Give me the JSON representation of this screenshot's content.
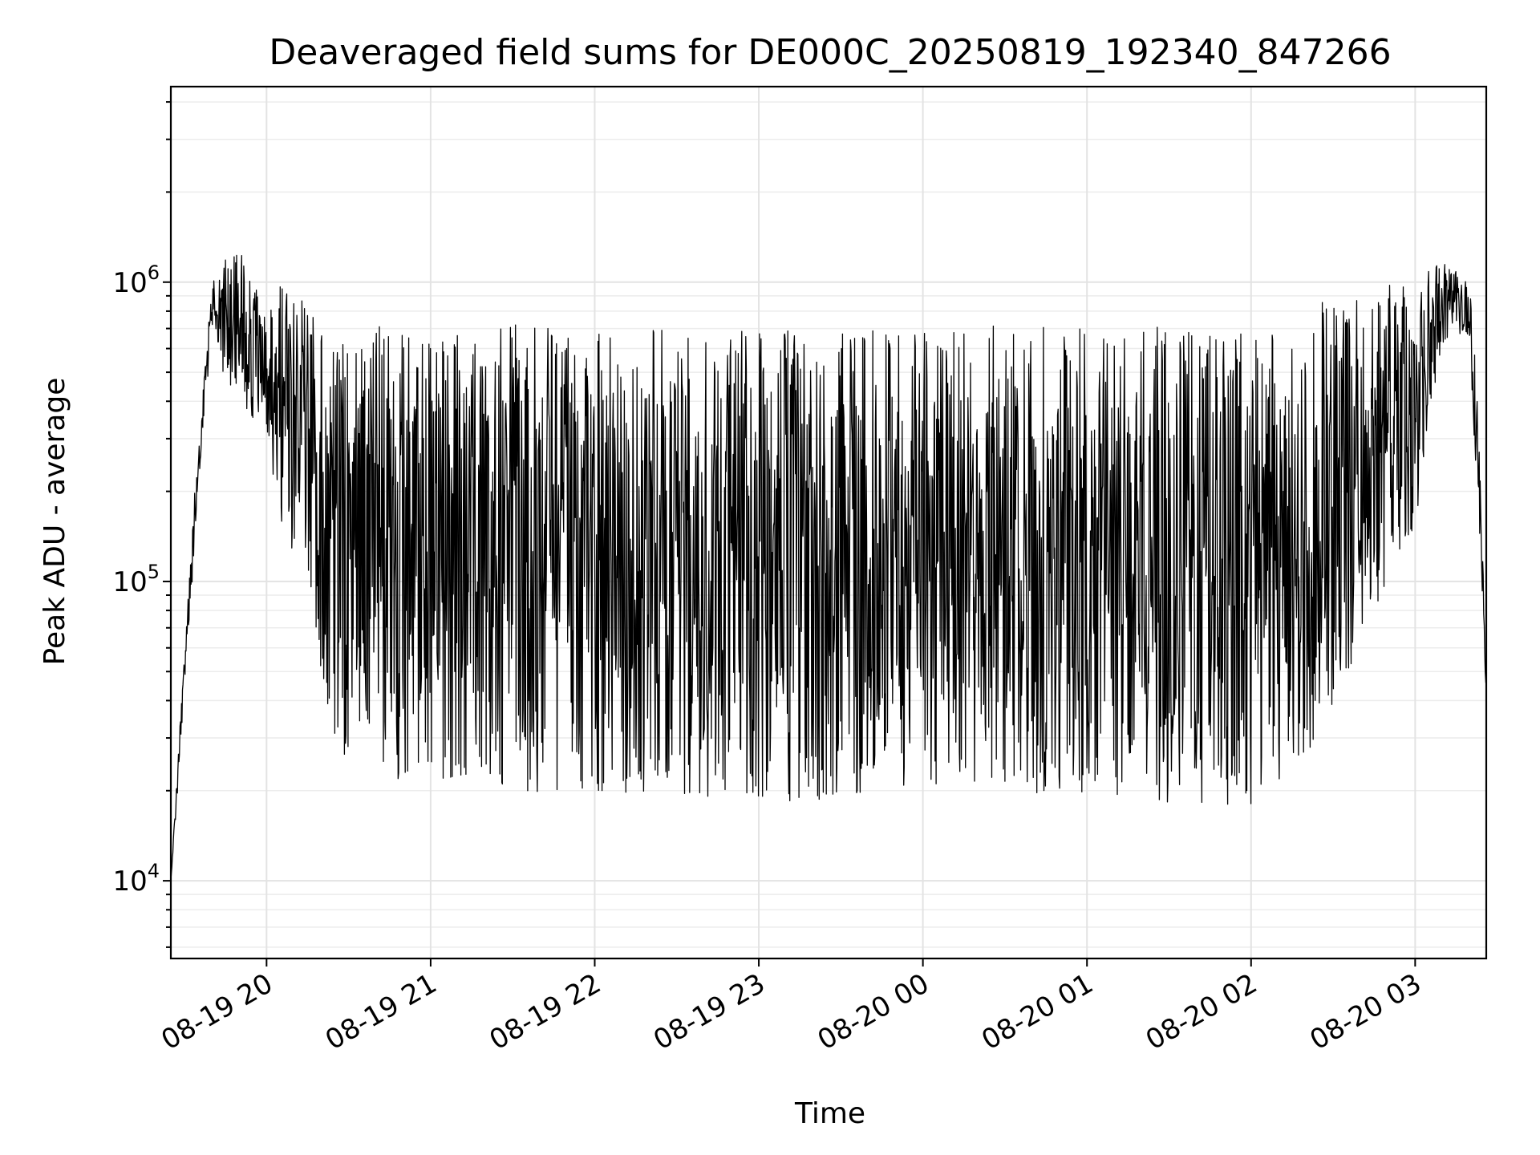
{
  "chart_data": {
    "type": "line",
    "title": "Deaveraged field sums for DE000C_20250819_192340_847266",
    "xlabel": "Time",
    "ylabel": "Peak ADU - average",
    "yscale": "log",
    "ylim": [
      5500,
      4500000
    ],
    "xlim": [
      "2025-08-19 19:25",
      "2025-08-20 03:26"
    ],
    "grid": true,
    "x_ticks": [
      "08-19 20",
      "08-19 21",
      "08-19 22",
      "08-19 23",
      "08-20 00",
      "08-20 01",
      "08-20 02",
      "08-20 03"
    ],
    "y_ticks": [
      {
        "value": 10000,
        "base": "10",
        "exp": "4"
      },
      {
        "value": 100000,
        "base": "10",
        "exp": "5"
      },
      {
        "value": 1000000,
        "base": "10",
        "exp": "6"
      }
    ],
    "series": [
      {
        "color": "#000000",
        "x": [
          "2025-08-19 19:25",
          "2025-08-19 19:30",
          "2025-08-19 19:35",
          "2025-08-19 19:40",
          "2025-08-19 19:45",
          "2025-08-19 19:50",
          "2025-08-19 19:55",
          "2025-08-19 20:00",
          "2025-08-19 20:05",
          "2025-08-19 20:10",
          "2025-08-19 20:15",
          "2025-08-19 20:20",
          "2025-08-19 20:25",
          "2025-08-19 20:30",
          "2025-08-19 20:45",
          "2025-08-19 21:00",
          "2025-08-19 21:30",
          "2025-08-19 22:00",
          "2025-08-19 22:30",
          "2025-08-19 23:00",
          "2025-08-19 23:30",
          "2025-08-20 00:00",
          "2025-08-20 00:30",
          "2025-08-20 01:00",
          "2025-08-20 01:30",
          "2025-08-20 02:00",
          "2025-08-20 02:15",
          "2025-08-20 02:30",
          "2025-08-20 02:45",
          "2025-08-20 03:00",
          "2025-08-20 03:05",
          "2025-08-20 03:10",
          "2025-08-20 03:15",
          "2025-08-20 03:20",
          "2025-08-20 03:23",
          "2025-08-20 03:26"
        ],
        "high": [
          10000,
          60000,
          300000,
          1000000,
          1200000,
          1500000,
          1000000,
          800000,
          1000000,
          900000,
          1000000,
          700000,
          650000,
          700000,
          750000,
          700000,
          720000,
          720000,
          700000,
          700000,
          680000,
          700000,
          720000,
          700000,
          720000,
          700000,
          750000,
          900000,
          1000000,
          1000000,
          1100000,
          1200000,
          1100000,
          1000000,
          400000,
          50000
        ],
        "low": [
          10000,
          40000,
          200000,
          700000,
          450000,
          400000,
          350000,
          300000,
          150000,
          120000,
          100000,
          50000,
          28000,
          24000,
          22000,
          21000,
          20000,
          19000,
          19000,
          18000,
          18000,
          19000,
          20000,
          19000,
          18000,
          18000,
          22000,
          35000,
          80000,
          150000,
          300000,
          600000,
          700000,
          600000,
          150000,
          40000
        ]
      }
    ]
  }
}
